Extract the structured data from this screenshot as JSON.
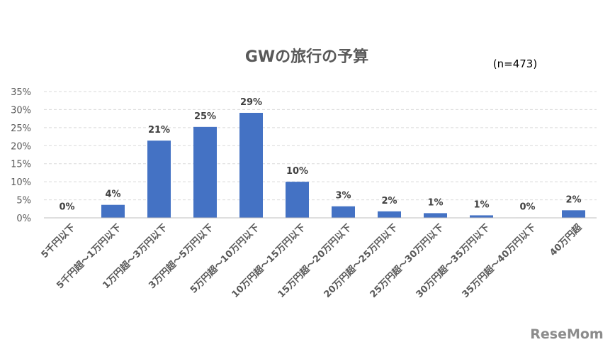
{
  "chart_data": {
    "type": "bar",
    "title": "GWの旅行の予算",
    "note": "(n=473)",
    "categories": [
      "5千円以下",
      "5千円超～1万円以下",
      "1万円超～3万円以下",
      "3万円超～5万円以下",
      "5万円超～10万円以下",
      "10万円超～15万円以下",
      "15万円超～20万円以下",
      "20万円超～25万円以下",
      "25万円超～30万円以下",
      "30万円超～35万円以下",
      "35万円超～40万円以下",
      "40万円超"
    ],
    "values": [
      0.1,
      3.6,
      21.4,
      25.2,
      29.1,
      10.0,
      3.2,
      1.8,
      1.3,
      0.7,
      0.1,
      2.1
    ],
    "data_labels": [
      "0%",
      "4%",
      "21%",
      "25%",
      "29%",
      "10%",
      "3%",
      "2%",
      "1%",
      "1%",
      "0%",
      "2%"
    ],
    "yticks": [
      "0%",
      "5%",
      "10%",
      "15%",
      "20%",
      "25%",
      "30%",
      "35%"
    ],
    "ylim": [
      0,
      35
    ],
    "grid": true,
    "bar_color": "#4472c4"
  },
  "watermark": "ReseMom"
}
